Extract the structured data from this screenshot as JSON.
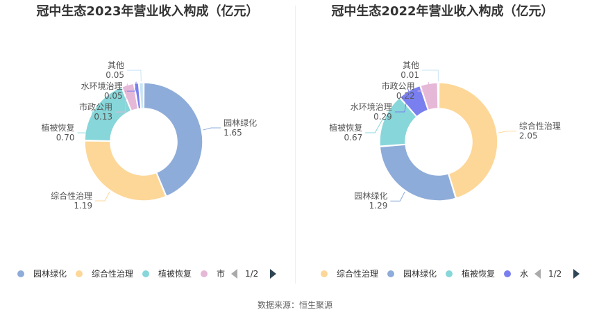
{
  "source": "数据来源：恒生聚源",
  "chart_data": [
    {
      "type": "pie",
      "title": "冠中生态2023年营业收入构成（亿元）",
      "slices": [
        {
          "name": "园林绿化",
          "value": 1.65,
          "label": "1.65",
          "color": "#8eacd9"
        },
        {
          "name": "综合性治理",
          "value": 1.19,
          "label": "1.19",
          "color": "#fdd798"
        },
        {
          "name": "植被恢复",
          "value": 0.7,
          "label": "0.70",
          "color": "#87d6d9"
        },
        {
          "name": "市政公用",
          "value": 0.13,
          "label": "0.13",
          "color": "#e6b8d8"
        },
        {
          "name": "水环境治理",
          "value": 0.05,
          "label": "0.05",
          "color": "#7a7fef"
        },
        {
          "name": "其他",
          "value": 0.05,
          "label": "0.05",
          "color": "#c6e4f6"
        }
      ],
      "legend": {
        "items": [
          "园林绿化",
          "综合性治理",
          "植被恢复",
          "市"
        ],
        "page": "1/2",
        "placement": "bottom"
      }
    },
    {
      "type": "pie",
      "title": "冠中生态2022年营业收入构成（亿元）",
      "slices": [
        {
          "name": "综合性治理",
          "value": 2.05,
          "label": "2.05",
          "color": "#fdd798"
        },
        {
          "name": "园林绿化",
          "value": 1.29,
          "label": "1.29",
          "color": "#8eacd9"
        },
        {
          "name": "植被恢复",
          "value": 0.67,
          "label": "0.67",
          "color": "#87d6d9"
        },
        {
          "name": "水环境治理",
          "value": 0.29,
          "label": "0.29",
          "color": "#7a7fef"
        },
        {
          "name": "市政公用",
          "value": 0.22,
          "label": "0.22",
          "color": "#e6b8d8"
        },
        {
          "name": "其他",
          "value": 0.01,
          "label": "0.01",
          "color": "#c6e4f6"
        }
      ],
      "legend": {
        "items": [
          "综合性治理",
          "园林绿化",
          "植被恢复",
          "水"
        ],
        "page": "1/2",
        "placement": "bottom"
      }
    }
  ]
}
